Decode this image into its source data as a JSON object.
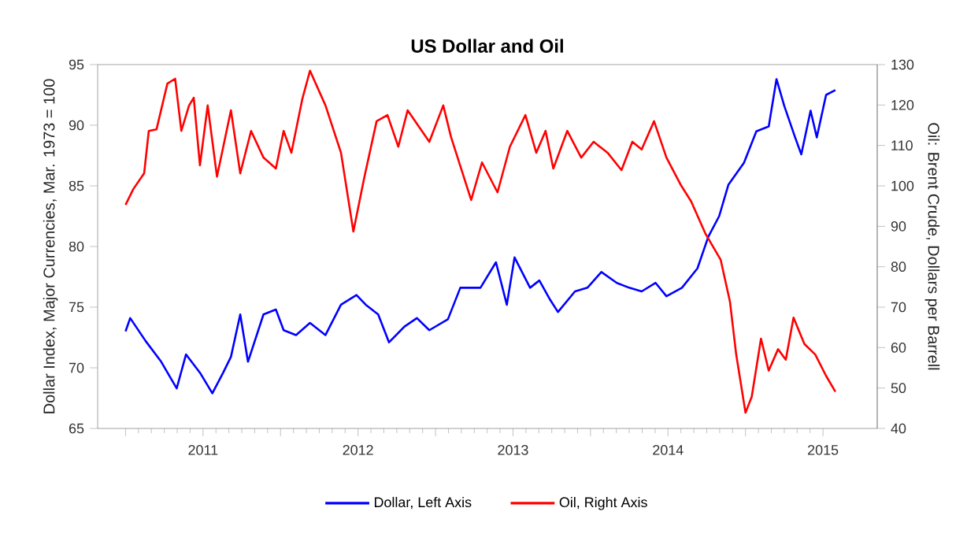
{
  "chart_data": {
    "type": "line",
    "title": "US Dollar and Oil",
    "ylabel": "Dollar Index, Major Currencies, Mar. 1973 = 100",
    "y2label": "Oil: Brent Crude, Dollars per Barrell",
    "xlim": [
      2010.82,
      2015.85
    ],
    "xticks": [
      {
        "value": 2011,
        "label": null
      },
      {
        "value": 2011.5,
        "label": "2011"
      },
      {
        "value": 2012,
        "label": null
      },
      {
        "value": 2012.5,
        "label": "2012"
      },
      {
        "value": 2013,
        "label": null
      },
      {
        "value": 2013.5,
        "label": "2013"
      },
      {
        "value": 2014,
        "label": null
      },
      {
        "value": 2014.5,
        "label": "2014"
      },
      {
        "value": 2015,
        "label": null
      },
      {
        "value": 2015.5,
        "label": "2015"
      }
    ],
    "ylim": [
      65,
      95
    ],
    "yticks": [
      65,
      70,
      75,
      80,
      85,
      90,
      95
    ],
    "y2lim": [
      40,
      130
    ],
    "y2ticks": [
      40,
      50,
      60,
      70,
      80,
      90,
      100,
      110,
      120,
      130
    ],
    "legend": "bottom",
    "grid": false,
    "marker": "none",
    "line_style": "solid",
    "series": [
      {
        "name": "Dollar, Left Axis",
        "color": "#0000ff",
        "x": [
          2011.0,
          2011.03,
          2011.13,
          2011.23,
          2011.33,
          2011.39,
          2011.48,
          2011.56,
          2011.63,
          2011.68,
          2011.74,
          2011.79,
          2011.89,
          2011.97,
          2012.02,
          2012.1,
          2012.19,
          2012.29,
          2012.39,
          2012.49,
          2012.55,
          2012.63,
          2012.7,
          2012.8,
          2012.88,
          2012.96,
          2013.08,
          2013.16,
          2013.29,
          2013.39,
          2013.46,
          2013.51,
          2013.61,
          2013.67,
          2013.74,
          2013.79,
          2013.9,
          2013.98,
          2014.07,
          2014.17,
          2014.25,
          2014.33,
          2014.42,
          2014.49,
          2014.59,
          2014.69,
          2014.76,
          2014.83,
          2014.89,
          2014.99,
          2015.07,
          2015.15,
          2015.2,
          2015.25,
          2015.32,
          2015.36,
          2015.42,
          2015.46,
          2015.52,
          2015.58
        ],
        "values": [
          73.0,
          74.1,
          72.2,
          70.5,
          68.3,
          71.1,
          69.6,
          67.9,
          69.6,
          70.9,
          74.4,
          70.5,
          74.4,
          74.8,
          73.1,
          72.7,
          73.7,
          72.7,
          75.2,
          76.0,
          75.2,
          74.4,
          72.1,
          73.4,
          74.1,
          73.1,
          74.0,
          76.6,
          76.6,
          78.7,
          75.2,
          79.1,
          76.6,
          77.2,
          75.6,
          74.6,
          76.3,
          76.6,
          77.9,
          77.0,
          76.6,
          76.3,
          77.0,
          75.9,
          76.6,
          78.2,
          80.8,
          82.5,
          85.1,
          86.9,
          89.5,
          89.9,
          93.8,
          91.6,
          89.0,
          87.6,
          91.2,
          89.0,
          92.5,
          92.9
        ],
        "axis": "y"
      },
      {
        "name": "Oil, Right Axis",
        "color": "#ff0000",
        "x": [
          2011.0,
          2011.05,
          2011.12,
          2011.15,
          2011.2,
          2011.27,
          2011.32,
          2011.36,
          2011.41,
          2011.44,
          2011.48,
          2011.53,
          2011.59,
          2011.68,
          2011.74,
          2011.81,
          2011.89,
          2011.97,
          2012.02,
          2012.07,
          2012.14,
          2012.19,
          2012.29,
          2012.39,
          2012.47,
          2012.54,
          2012.62,
          2012.69,
          2012.76,
          2012.82,
          2012.96,
          2013.05,
          2013.1,
          2013.23,
          2013.3,
          2013.4,
          2013.48,
          2013.58,
          2013.65,
          2013.71,
          2013.76,
          2013.85,
          2013.94,
          2014.02,
          2014.11,
          2014.2,
          2014.27,
          2014.33,
          2014.41,
          2014.49,
          2014.58,
          2014.65,
          2014.74,
          2014.84,
          2014.9,
          2014.94,
          2015.0,
          2015.04,
          2015.1,
          2015.15,
          2015.21,
          2015.26,
          2015.31,
          2015.38,
          2015.45,
          2015.52,
          2015.58
        ],
        "values": [
          95.3,
          99.2,
          103.1,
          113.6,
          114.0,
          125.3,
          126.5,
          113.6,
          119.9,
          121.8,
          105.1,
          119.9,
          102.3,
          118.7,
          103.1,
          113.6,
          107.0,
          104.3,
          113.6,
          108.2,
          121.4,
          128.5,
          119.9,
          108.2,
          88.7,
          102.0,
          116.0,
          117.5,
          109.7,
          118.7,
          110.9,
          119.9,
          112.1,
          96.5,
          105.8,
          98.4,
          109.7,
          117.5,
          108.2,
          113.6,
          104.3,
          113.6,
          107.0,
          110.9,
          108.2,
          103.9,
          110.9,
          109.0,
          116.0,
          107.0,
          100.4,
          96.1,
          88.3,
          81.7,
          71.3,
          58.3,
          43.9,
          47.8,
          62.2,
          54.3,
          59.6,
          57.0,
          67.4,
          60.9,
          58.3,
          53.0,
          49.1
        ],
        "axis": "y2"
      }
    ]
  }
}
